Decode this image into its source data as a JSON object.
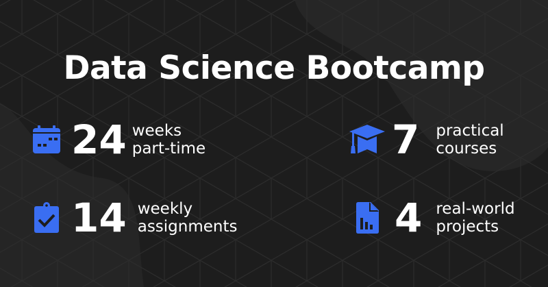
{
  "title": "Data Science Bootcamp",
  "accent_color": "#3a6ef2",
  "stats": [
    {
      "icon": "calendar-icon",
      "number": "24",
      "line1": "weeks",
      "line2": "part-time"
    },
    {
      "icon": "graduation-cap-icon",
      "number": "7",
      "line1": "practical",
      "line2": "courses"
    },
    {
      "icon": "clipboard-check-icon",
      "number": "14",
      "line1": "weekly",
      "line2": "assignments"
    },
    {
      "icon": "file-chart-icon",
      "number": "4",
      "line1": "real-world",
      "line2": "projects"
    }
  ]
}
